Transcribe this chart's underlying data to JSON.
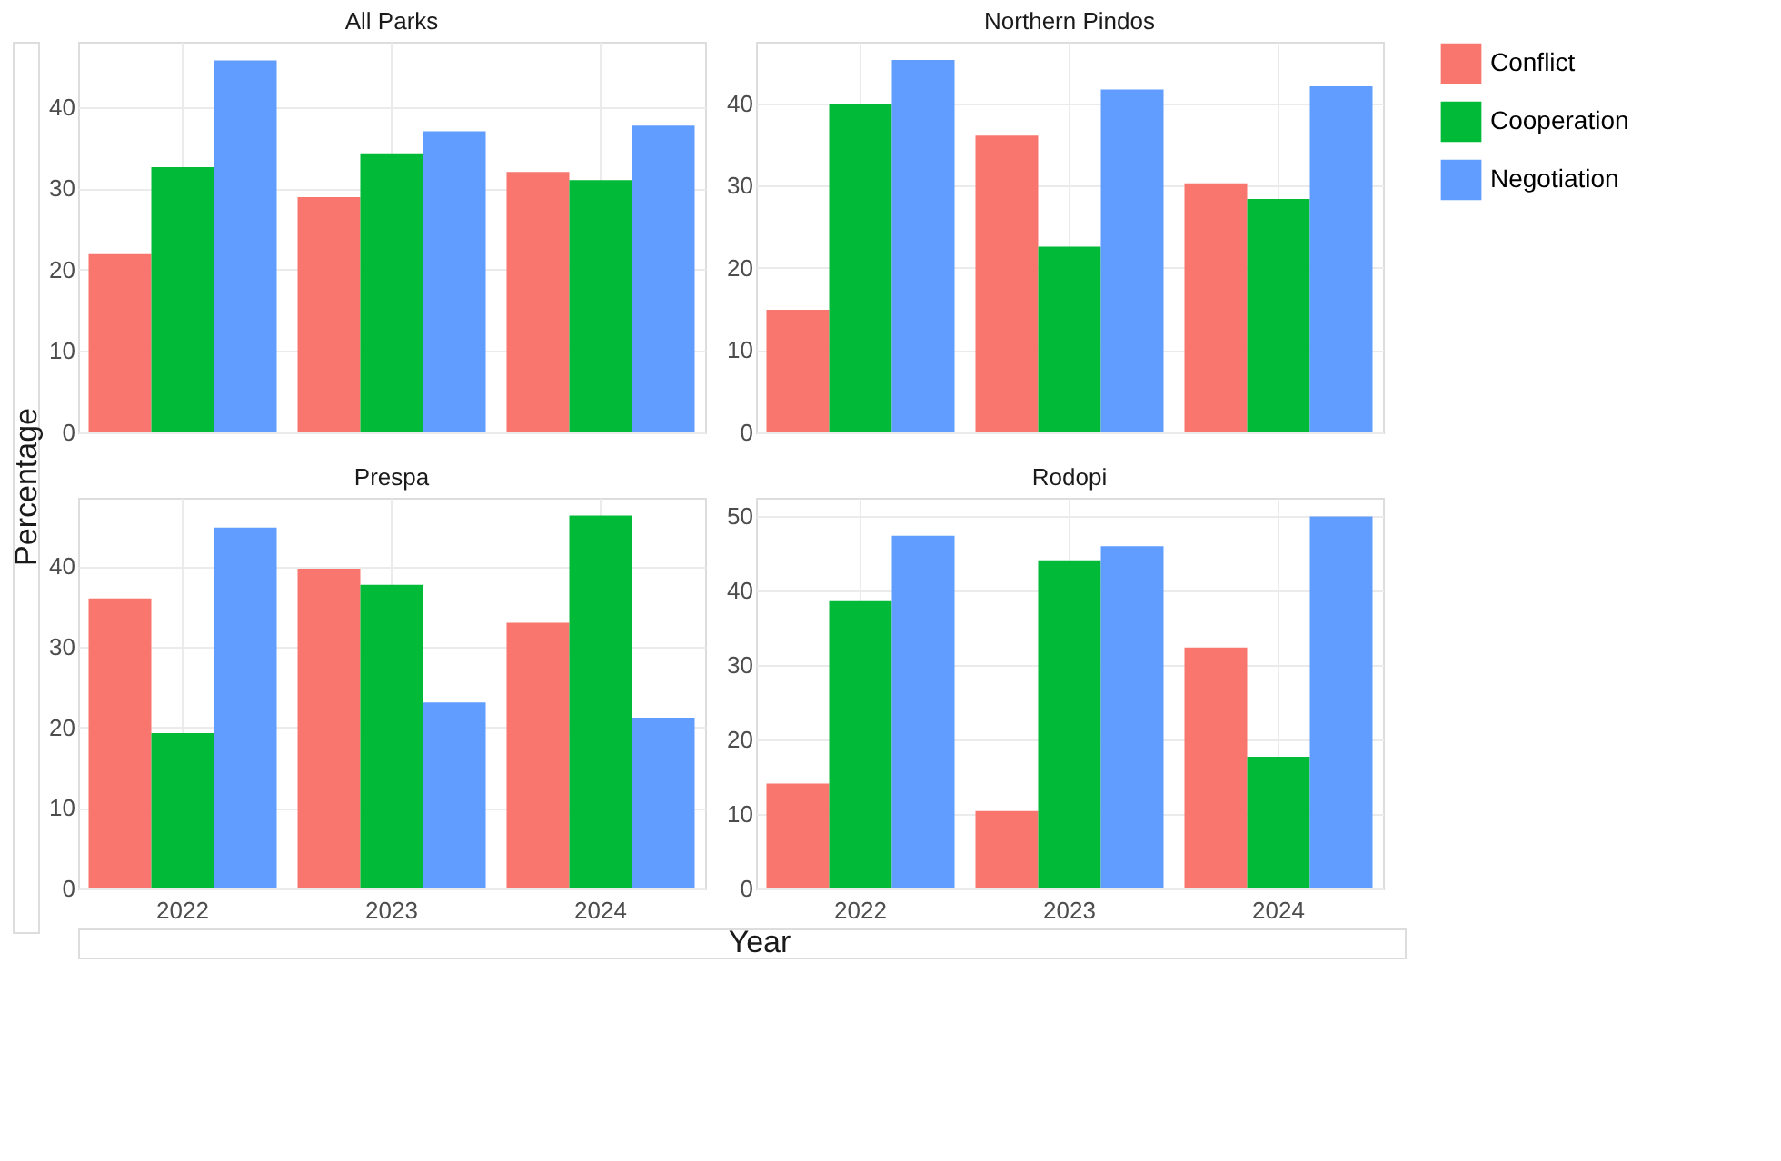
{
  "chart_data": [
    {
      "type": "bar",
      "title": "All Parks",
      "ylabel": "Percentage",
      "categories": [
        "2022",
        "2023",
        "2024"
      ],
      "ylim": [
        0,
        48
      ],
      "yticks": [
        0,
        10,
        20,
        30,
        40
      ],
      "grid": true,
      "legend": "right",
      "tick_labels": "y",
      "series": [
        {
          "name": "Conflict",
          "color": "#f8766d",
          "values": [
            21.9,
            28.9,
            32.0
          ]
        },
        {
          "name": "Cooperation",
          "color": "#00ba38",
          "values": [
            32.6,
            34.3,
            31.0
          ]
        },
        {
          "name": "Negotiation",
          "color": "#619cff",
          "values": [
            45.7,
            37.0,
            37.7
          ]
        }
      ]
    },
    {
      "type": "bar",
      "title": "Northern Pindos",
      "categories": [
        "2022",
        "2023",
        "2024"
      ],
      "ylim": [
        0,
        47.5
      ],
      "yticks": [
        0,
        10,
        20,
        30,
        40
      ],
      "grid": true,
      "tick_labels": "y",
      "series": [
        {
          "name": "Conflict",
          "color": "#f8766d",
          "values": [
            14.9,
            36.1,
            30.3
          ]
        },
        {
          "name": "Cooperation",
          "color": "#00ba38",
          "values": [
            40.0,
            22.6,
            28.4
          ]
        },
        {
          "name": "Negotiation",
          "color": "#619cff",
          "values": [
            45.3,
            41.7,
            42.1
          ]
        }
      ]
    },
    {
      "type": "bar",
      "title": "Prespa",
      "xlabel": "Year",
      "categories": [
        "2022",
        "2023",
        "2024"
      ],
      "ylim": [
        0,
        48.5
      ],
      "yticks": [
        0,
        10,
        20,
        30,
        40
      ],
      "grid": true,
      "series": [
        {
          "name": "Conflict",
          "color": "#f8766d",
          "values": [
            36.0,
            39.7,
            33.0
          ]
        },
        {
          "name": "Cooperation",
          "color": "#00ba38",
          "values": [
            19.3,
            37.7,
            46.3
          ]
        },
        {
          "name": "Negotiation",
          "color": "#619cff",
          "values": [
            44.8,
            23.1,
            21.2
          ]
        }
      ]
    },
    {
      "type": "bar",
      "title": "Rodopi",
      "categories": [
        "2022",
        "2023",
        "2024"
      ],
      "ylim": [
        0,
        52.5
      ],
      "yticks": [
        0,
        10,
        20,
        30,
        40,
        50
      ],
      "grid": true,
      "series": [
        {
          "name": "Conflict",
          "color": "#f8766d",
          "values": [
            14.1,
            10.4,
            32.4
          ]
        },
        {
          "name": "Cooperation",
          "color": "#00ba38",
          "values": [
            38.6,
            44.1,
            17.7
          ]
        },
        {
          "name": "Negotiation",
          "color": "#619cff",
          "values": [
            47.4,
            46.0,
            50.0
          ]
        }
      ]
    }
  ]
}
